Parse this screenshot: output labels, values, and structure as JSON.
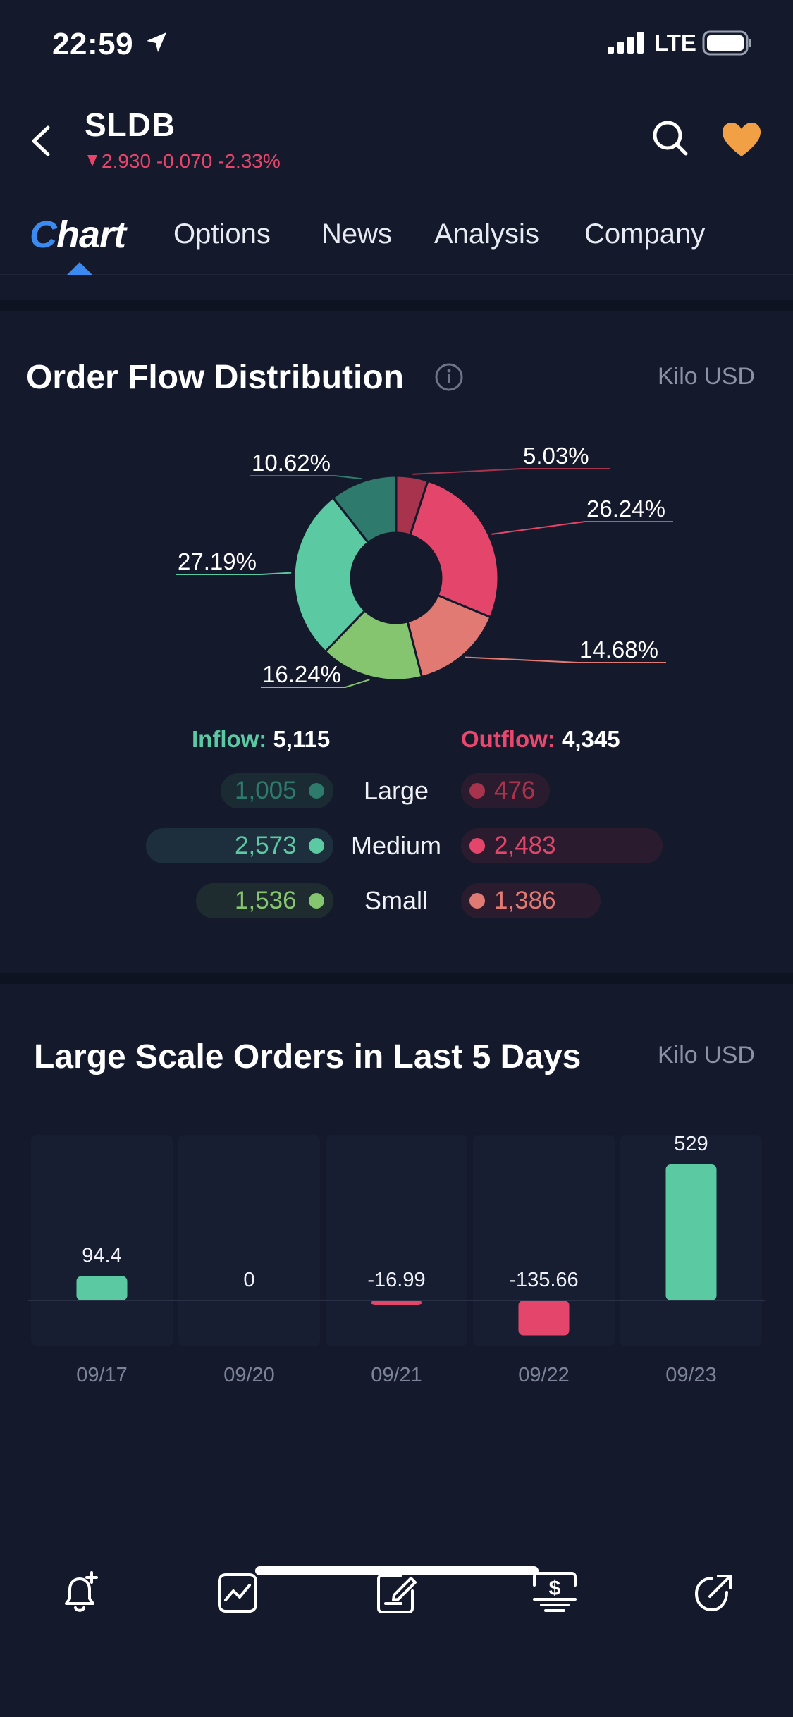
{
  "status_bar": {
    "time": "22:59",
    "network": "LTE"
  },
  "header": {
    "symbol": "SLDB",
    "price": "2.930",
    "change": "-0.070",
    "change_pct": "-2.33%"
  },
  "tabs": [
    {
      "label": "Chart",
      "active": true
    },
    {
      "label": "Options"
    },
    {
      "label": "News"
    },
    {
      "label": "Analysis"
    },
    {
      "label": "Company"
    }
  ],
  "order_flow": {
    "title": "Order Flow Distribution",
    "unit": "Kilo USD",
    "inflow_label": "Inflow:",
    "inflow_value": "5,115",
    "outflow_label": "Outflow:",
    "outflow_value": "4,345",
    "rows": [
      {
        "label": "Large",
        "inflow": "1,005",
        "outflow": "476"
      },
      {
        "label": "Medium",
        "inflow": "2,573",
        "outflow": "2,483"
      },
      {
        "label": "Small",
        "inflow": "1,536",
        "outflow": "1,386"
      }
    ],
    "colors": {
      "large_in": "#2e7a6c",
      "medium_in": "#5bc9a2",
      "small_in": "#86c56f",
      "large_out": "#a8334c",
      "medium_out": "#e4456a",
      "small_out": "#e07a72"
    }
  },
  "chart_data": [
    {
      "type": "pie",
      "categories": [
        "Large Outflow",
        "Medium Outflow",
        "Small Outflow",
        "Small Inflow",
        "Medium Inflow",
        "Large Inflow"
      ],
      "values": [
        5.03,
        26.24,
        14.68,
        16.24,
        27.19,
        10.62
      ],
      "labels": [
        "5.03%",
        "26.24%",
        "14.68%",
        "16.24%",
        "27.19%",
        "10.62%"
      ],
      "colors": [
        "#a8334c",
        "#e4456a",
        "#e07a72",
        "#86c56f",
        "#5bc9a2",
        "#2e7a6c"
      ]
    },
    {
      "type": "bar",
      "title": "Large Scale Orders in Last 5 Days",
      "unit": "Kilo USD",
      "categories": [
        "09/17",
        "09/20",
        "09/21",
        "09/22",
        "09/23"
      ],
      "values": [
        94.4,
        0,
        -16.99,
        -135.66,
        529
      ],
      "value_labels": [
        "94.4",
        "0",
        "-16.99",
        "-135.66",
        "529"
      ],
      "colors": {
        "positive": "#5bc9a2",
        "negative": "#e4456a"
      }
    }
  ],
  "bottom_nav": [
    {
      "icon": "bell-plus-icon"
    },
    {
      "icon": "chart-line-icon"
    },
    {
      "icon": "note-edit-icon"
    },
    {
      "icon": "dollar-trade-icon"
    },
    {
      "icon": "share-icon"
    }
  ]
}
